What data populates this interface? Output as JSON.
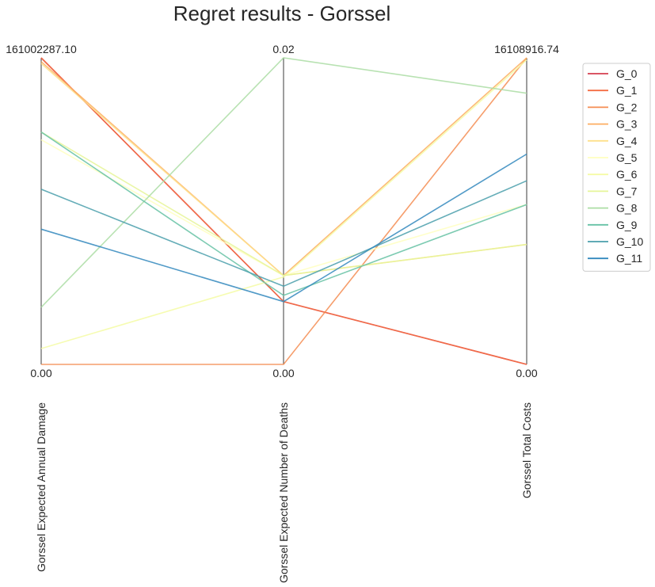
{
  "chart_data": {
    "type": "parallel_coordinates",
    "title": "Regret results - Gorssel",
    "axes": [
      {
        "name": "Gorssel Expected Annual Damage",
        "min": 0,
        "max": 161002287.1,
        "min_label": "0.00",
        "max_label": "161002287.10"
      },
      {
        "name": "Gorssel Expected Number of Deaths",
        "min": 0,
        "max": 0.02,
        "min_label": "0.00",
        "max_label": "0.02"
      },
      {
        "name": "Gorssel Total Costs",
        "min": 0,
        "max": 16108916.74,
        "min_label": "0.00",
        "max_label": "16108916.74"
      }
    ],
    "series": [
      {
        "name": "G_0",
        "color": "#d53e4f",
        "values": [
          161002287.1,
          0.0041,
          0
        ]
      },
      {
        "name": "G_1",
        "color": "#f46d43",
        "values": [
          161002287.1,
          0.0041,
          0
        ]
      },
      {
        "name": "G_2",
        "color": "#f48d52",
        "values": [
          0,
          0,
          16108916.74
        ]
      },
      {
        "name": "G_3",
        "color": "#fdae61",
        "values": [
          159000000,
          0.0058,
          16108916.74
        ]
      },
      {
        "name": "G_4",
        "color": "#fee08b",
        "values": [
          158000000,
          0.0058,
          6300000
        ]
      },
      {
        "name": "G_5",
        "color": "#ffffbf",
        "values": [
          118000000,
          0.0058,
          8400000
        ]
      },
      {
        "name": "G_6",
        "color": "#f5fba5",
        "values": [
          8300000,
          0.0057,
          16000000
        ]
      },
      {
        "name": "G_7",
        "color": "#e6f598",
        "values": [
          122000000,
          0.0058,
          6300000
        ]
      },
      {
        "name": "G_8",
        "color": "#abdda4",
        "values": [
          30000000,
          0.02,
          14250000
        ]
      },
      {
        "name": "G_9",
        "color": "#66c2a5",
        "values": [
          122000000,
          0.0045,
          8400000
        ]
      },
      {
        "name": "G_10",
        "color": "#4a9fab",
        "values": [
          92000000,
          0.0051,
          9650000
        ]
      },
      {
        "name": "G_11",
        "color": "#3288bd",
        "values": [
          71000000,
          0.0041,
          11050000
        ]
      }
    ],
    "legend": {
      "position": "right-top"
    }
  }
}
